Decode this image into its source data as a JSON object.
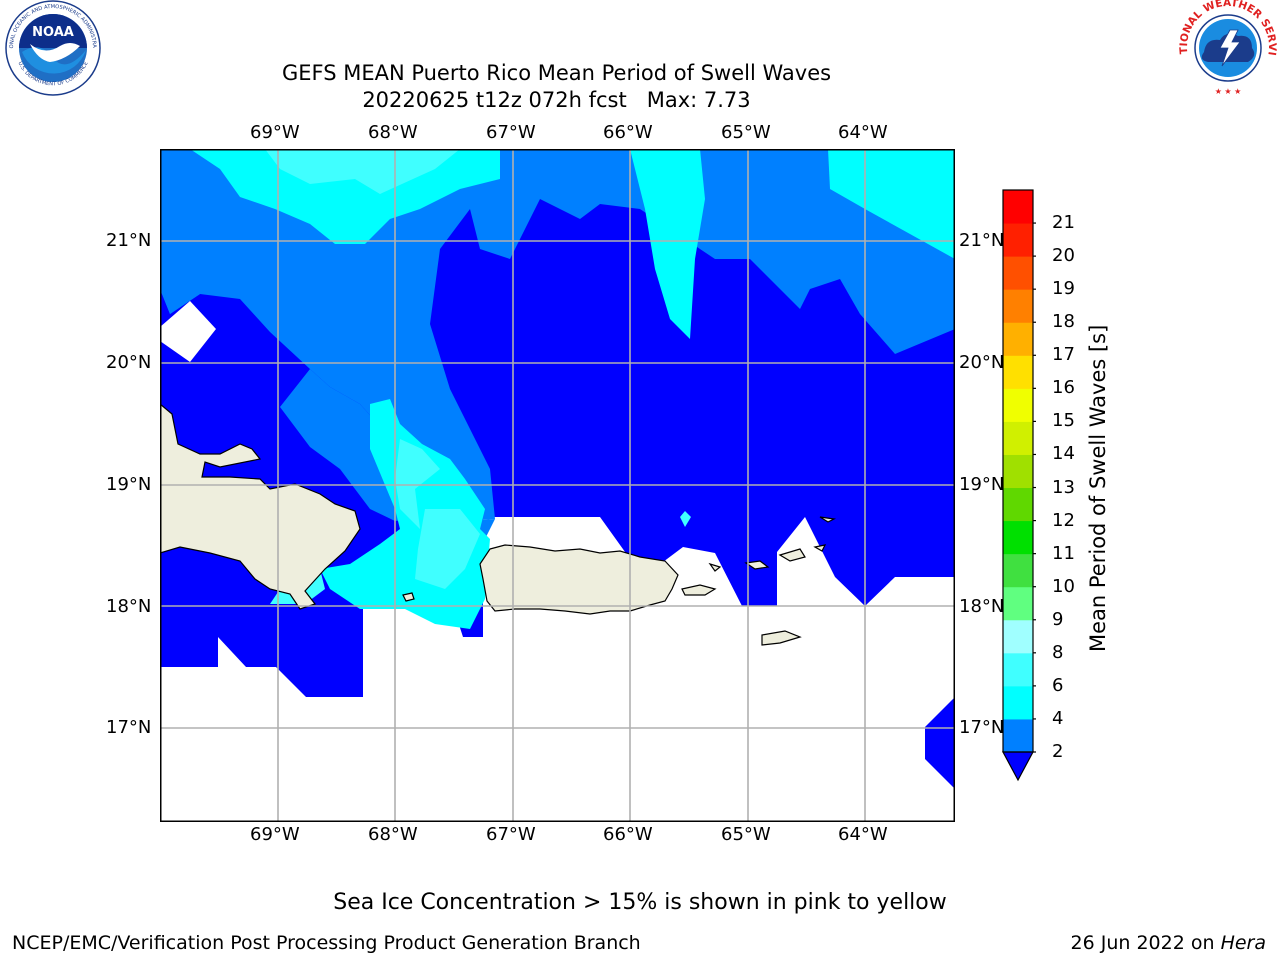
{
  "header": {
    "title_line1": "GEFS MEAN Puerto Rico Mean Period of Swell Waves",
    "title_line2": "20220625 t12z 072h fcst   Max: 7.73"
  },
  "logos": {
    "noaa": {
      "text": "NOAA",
      "ring_top": "NATIONAL OCEANIC AND ATMOSPHERIC ADMINISTRATION",
      "ring_bottom": "U.S. DEPARTMENT OF COMMERCE"
    },
    "nws": {
      "ring_text": "NATIONAL WEATHER SERVICE"
    }
  },
  "map": {
    "lon_labels": [
      "69°W",
      "68°W",
      "67°W",
      "66°W",
      "65°W",
      "64°W"
    ],
    "lat_labels": [
      "21°N",
      "20°N",
      "19°N",
      "18°N",
      "17°N"
    ],
    "lon_range": [
      -70,
      -63.25
    ],
    "lat_range": [
      16.25,
      21.75
    ],
    "grid": true,
    "land_color": "#eeeedd",
    "no_data_color": "#ffffff"
  },
  "colorbar": {
    "title": "Mean Period of Swell Waves [s]",
    "ticks": [
      "2",
      "4",
      "6",
      "8",
      "9",
      "10",
      "11",
      "12",
      "13",
      "14",
      "15",
      "16",
      "17",
      "18",
      "19",
      "20",
      "21"
    ],
    "colors": [
      "#0000ff",
      "#0080ff",
      "#00ffff",
      "#40ffff",
      "#a0ffff",
      "#60ff80",
      "#40e040",
      "#00e000",
      "#60d800",
      "#a0e000",
      "#d0f000",
      "#f0ff00",
      "#ffe000",
      "#ffb000",
      "#ff8000",
      "#ff5000",
      "#ff2000",
      "#ff0000"
    ],
    "extend": "min"
  },
  "footer": {
    "note": "Sea Ice Concentration > 15% is shown in pink to yellow",
    "credit": "NCEP/EMC/Verification Post Processing Product Generation Branch",
    "date": "26 Jun 2022 on",
    "machine": "Hera"
  }
}
